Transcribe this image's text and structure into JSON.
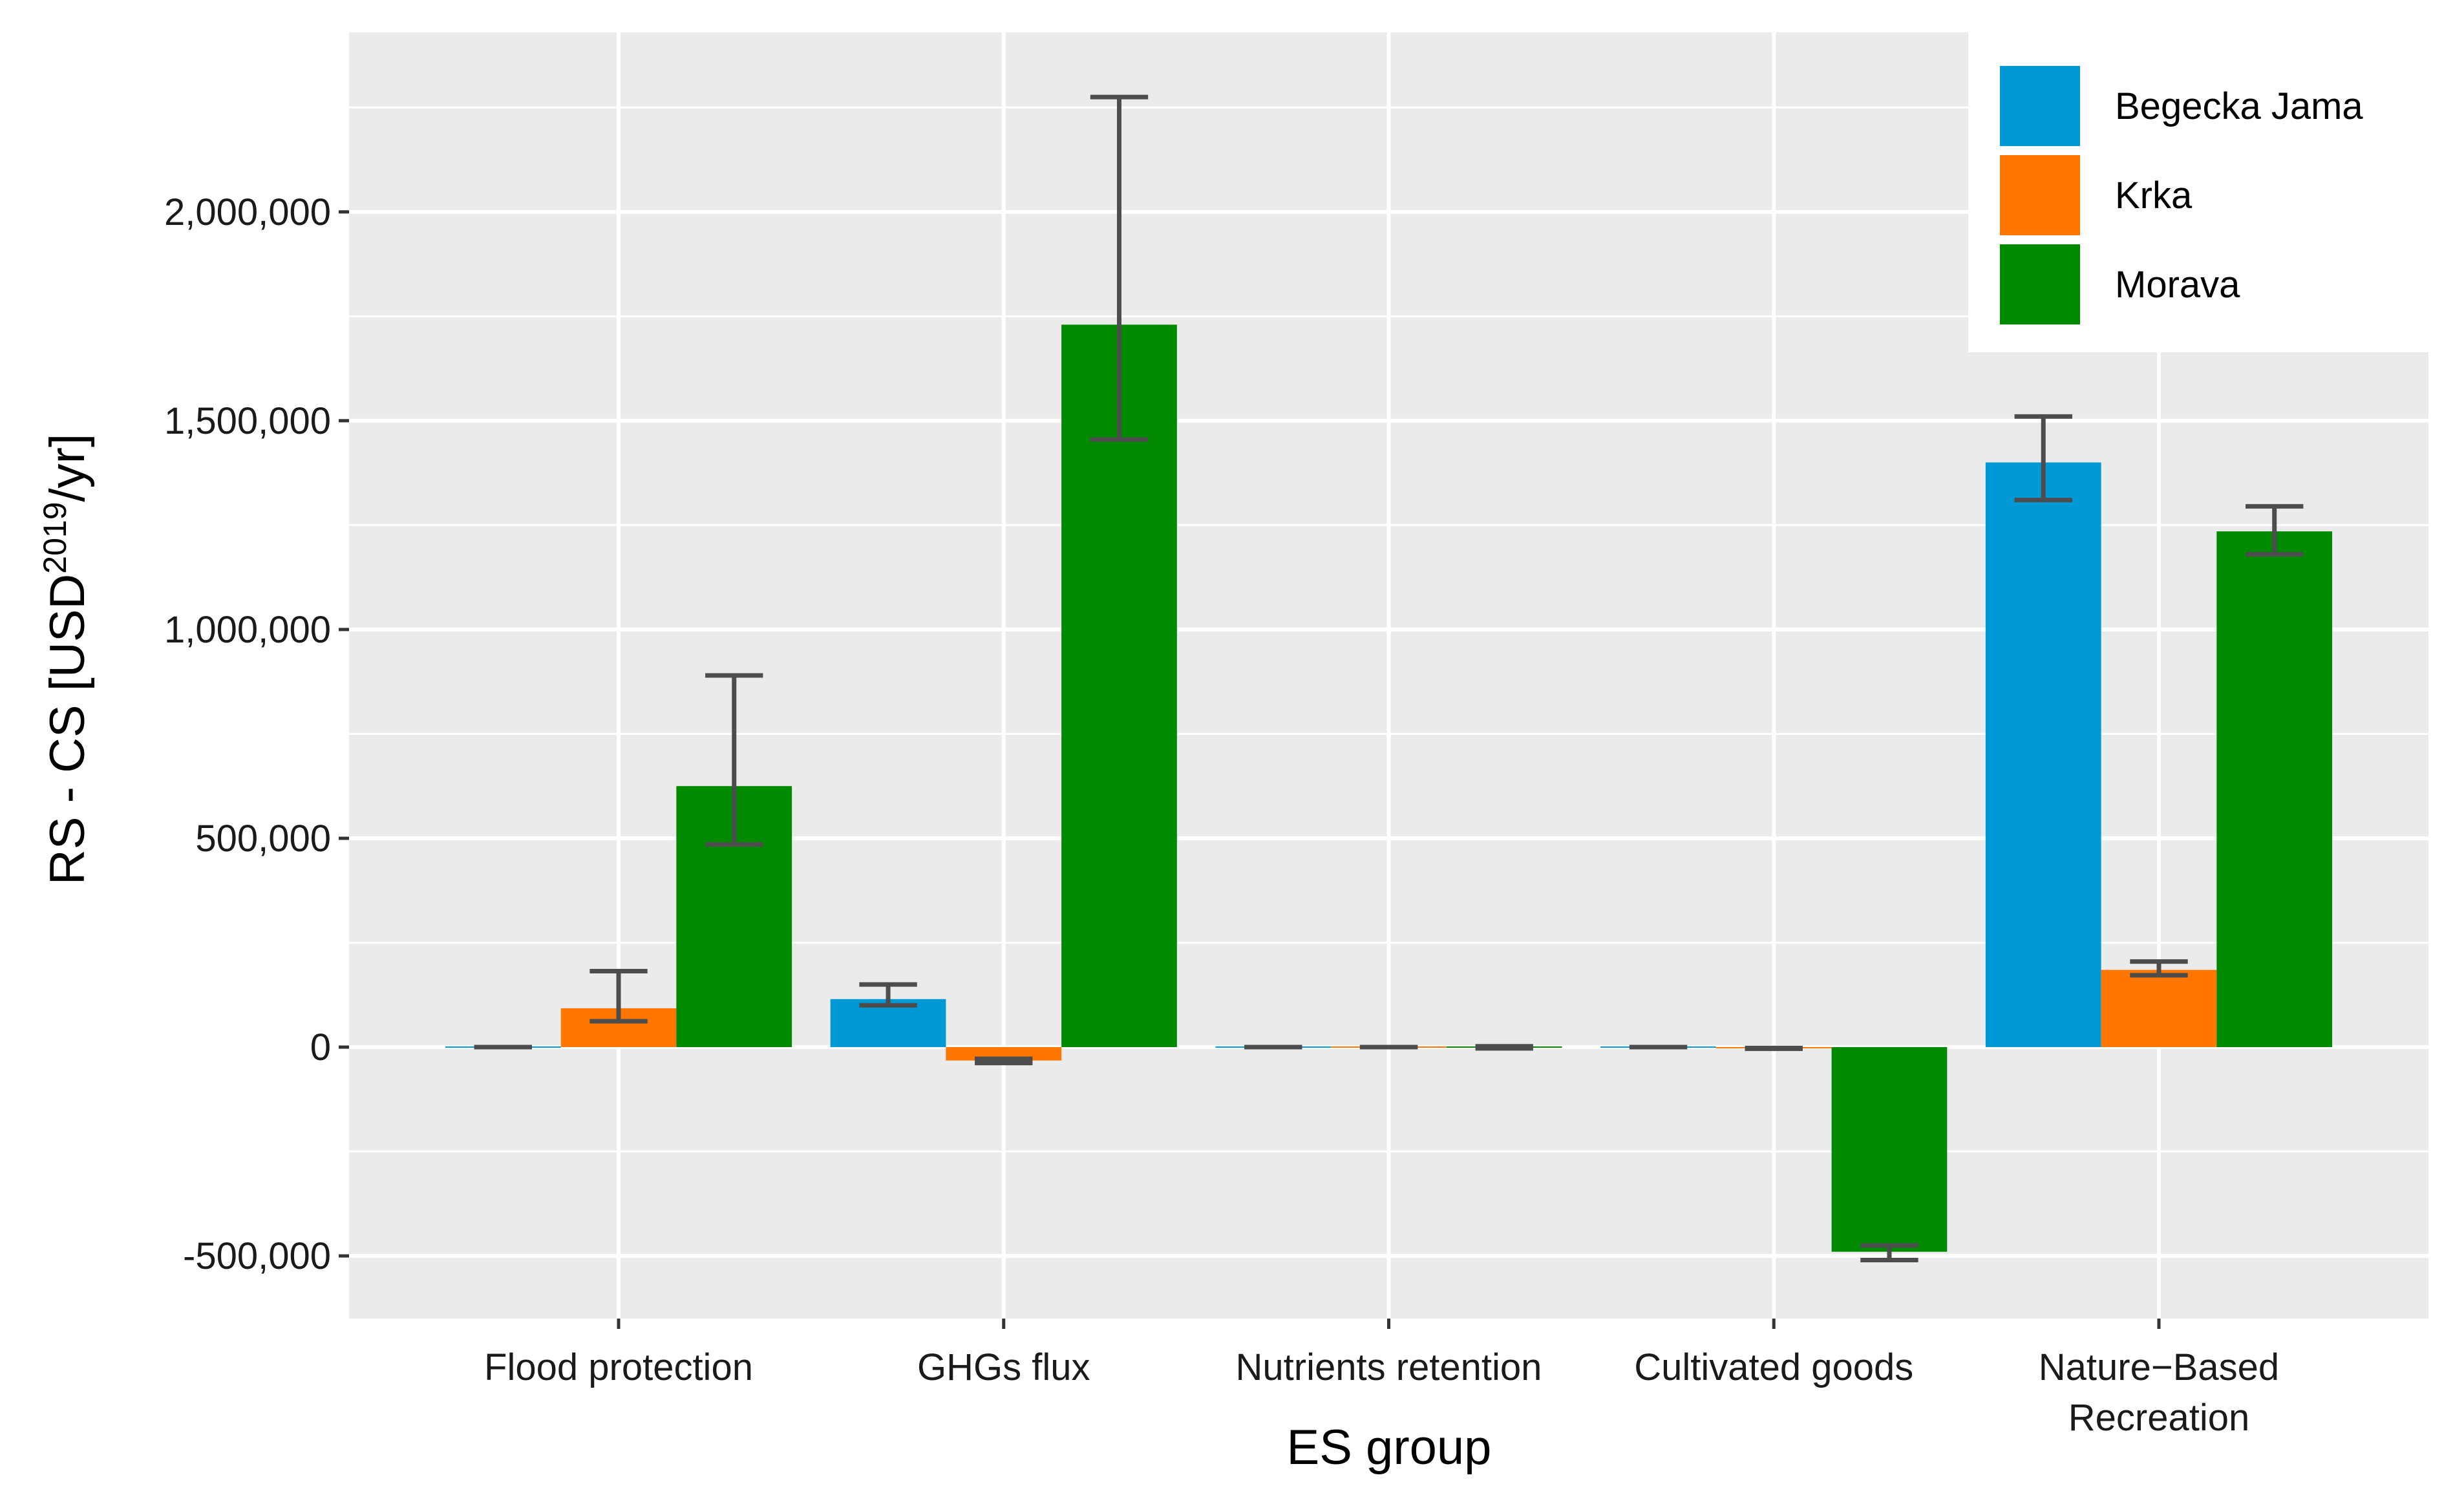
{
  "chart_data": {
    "type": "bar",
    "title": "",
    "xlabel": "ES group",
    "ylabel": {
      "main": "RS - CS [USD",
      "superscript": "2019",
      "suffix": "/yr]"
    },
    "ylim": [
      -650000,
      2430000
    ],
    "yticks": [
      {
        "value": -500000,
        "label": "-500,000"
      },
      {
        "value": 0,
        "label": "0"
      },
      {
        "value": 500000,
        "label": "500,000"
      },
      {
        "value": 1000000,
        "label": "1,000,000"
      },
      {
        "value": 1500000,
        "label": "1,500,000"
      },
      {
        "value": 2000000,
        "label": "2,000,000"
      }
    ],
    "categories": [
      {
        "name": "Flood protection",
        "lines": [
          "Flood protection"
        ]
      },
      {
        "name": "GHGs flux",
        "lines": [
          "GHGs flux"
        ]
      },
      {
        "name": "Nutrients retention",
        "lines": [
          "Nutrients retention"
        ]
      },
      {
        "name": "Cultivated goods",
        "lines": [
          "Cultivated goods"
        ]
      },
      {
        "name": "Nature−Based Recreation",
        "lines": [
          "Nature−Based",
          "Recreation"
        ]
      }
    ],
    "series": [
      {
        "name": "Begecka Jama",
        "color": "#0099d5",
        "values": [
          0,
          115000,
          0,
          0,
          1400000
        ],
        "error_low": [
          0,
          100000,
          0,
          0,
          1310000
        ],
        "error_high": [
          0,
          150000,
          0,
          0,
          1510000
        ]
      },
      {
        "name": "Krka",
        "color": "#ff7700",
        "values": [
          93000,
          -32000,
          0,
          -3000,
          185000
        ],
        "error_low": [
          62000,
          -38000,
          0,
          -4000,
          172000
        ],
        "error_high": [
          182000,
          -28000,
          0,
          -2000,
          205000
        ]
      },
      {
        "name": "Morava",
        "color": "#008a00",
        "values": [
          625000,
          1730000,
          0,
          -490000,
          1235000
        ],
        "error_low": [
          485000,
          1455000,
          -3000,
          -510000,
          1180000
        ],
        "error_high": [
          890000,
          2275000,
          2000,
          -475000,
          1295000
        ]
      }
    ],
    "grid": true,
    "legend_position": "top-right"
  }
}
